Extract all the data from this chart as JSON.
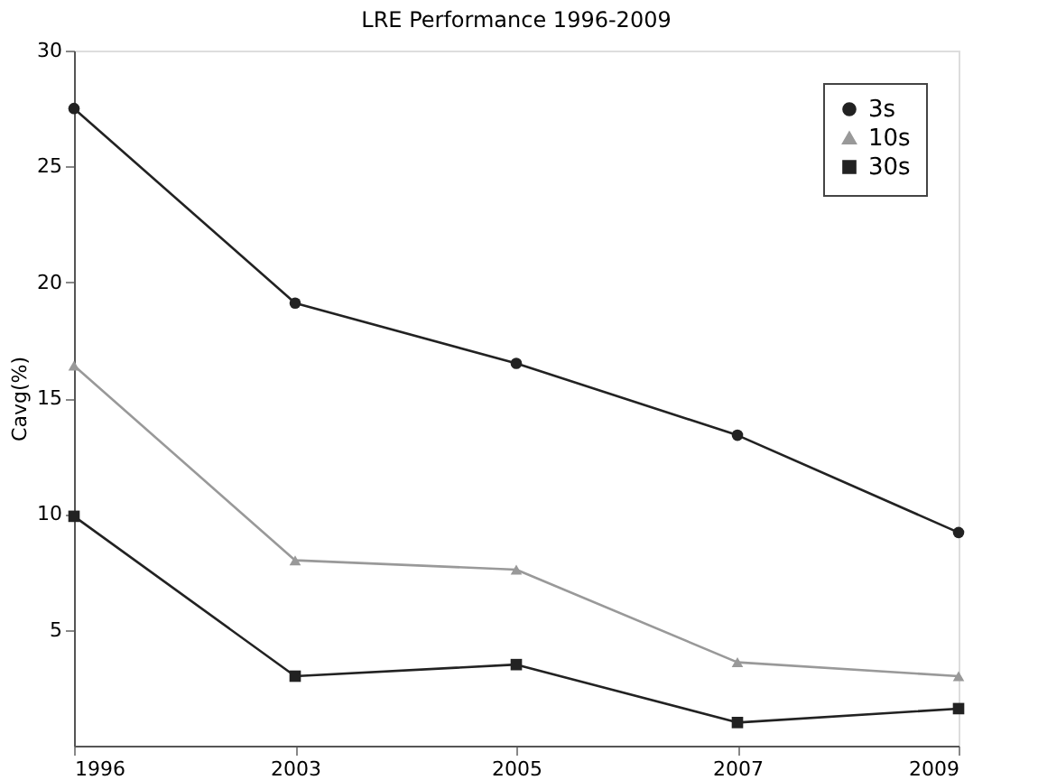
{
  "chart_data": {
    "type": "line",
    "title": "LRE Performance 1996-2009",
    "ylabel": "Cavg(%)",
    "categories": [
      "1996",
      "2003",
      "2005",
      "2007",
      "2009"
    ],
    "series": [
      {
        "name": "3s",
        "color": "#222222",
        "marker": "circle",
        "values": [
          27.5,
          19.1,
          16.5,
          13.4,
          9.2
        ]
      },
      {
        "name": "10s",
        "color": "#999999",
        "marker": "triangle",
        "values": [
          16.4,
          8.0,
          7.6,
          3.6,
          3.0
        ]
      },
      {
        "name": "30s",
        "color": "#222222",
        "marker": "square",
        "values": [
          9.9,
          3.0,
          3.5,
          1.0,
          1.6
        ]
      }
    ],
    "ylim": [
      0,
      30
    ],
    "yticks": [
      5,
      10,
      15,
      20,
      25,
      30
    ],
    "grid": false,
    "line_style": "solid",
    "legend": "top right"
  }
}
